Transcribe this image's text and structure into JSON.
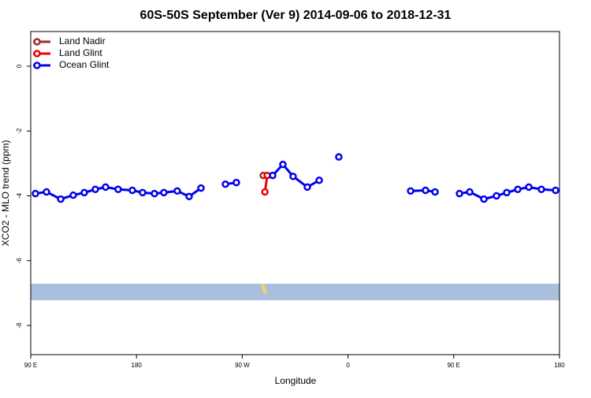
{
  "chart_data": {
    "type": "line",
    "title": "60S-50S September (Ver 9)   2014-09-06 to 2018-12-31",
    "x_label": "Longitude",
    "y_label": "XCO2 - MLO trend (ppm)",
    "xlim": [
      90,
      540
    ],
    "ylim": [
      -8.9,
      1.07
    ],
    "xticks": [
      {
        "value": 90,
        "label": "90 E"
      },
      {
        "value": 180,
        "label": "180"
      },
      {
        "value": 270,
        "label": "90 W"
      },
      {
        "value": 360,
        "label": "0"
      },
      {
        "value": 450,
        "label": "90 E"
      },
      {
        "value": 540,
        "label": "180"
      }
    ],
    "yticks": [
      0,
      -2,
      -4,
      -6,
      -8
    ],
    "legend": "top-left",
    "series": [
      {
        "name": "Land Nadir",
        "color": "#a52a2a",
        "x": [
          287.9
        ],
        "values": [
          -3.37
        ]
      },
      {
        "name": "Land Glint",
        "color": "#ee0000",
        "x": [
          291.3,
          289.3
        ],
        "values": [
          -3.37,
          -3.88
        ]
      },
      {
        "name": "Ocean Glint",
        "color": "#0000ee",
        "x": [
          94,
          103.4,
          115.5,
          126.2,
          135.6,
          145,
          153.7,
          164.4,
          176.5,
          185.2,
          195.3,
          203.3,
          214.7,
          224.8,
          234.9,
          245,
          255.7,
          265,
          280,
          295.9,
          304.6,
          313.3,
          325.4,
          335.5,
          345,
          352.2,
          380,
          413.3,
          426,
          434.1,
          445,
          454.9,
          463.6,
          475.7,
          486.4,
          495.1,
          504.5,
          513.9,
          524.6,
          536.7
        ],
        "values": [
          -3.93,
          -3.88,
          -4.1,
          -3.98,
          -3.9,
          -3.8,
          -3.73,
          -3.8,
          -3.83,
          -3.9,
          -3.93,
          -3.9,
          -3.85,
          -4.02,
          -3.76,
          null,
          -3.64,
          -3.59,
          null,
          -3.37,
          -3.03,
          -3.4,
          -3.73,
          -3.52,
          null,
          -2.8,
          null,
          -3.85,
          -3.83,
          -3.88,
          null,
          -3.93,
          -3.88,
          -4.1,
          -4.0,
          -3.9,
          -3.8,
          -3.73,
          -3.8,
          -3.83
        ]
      }
    ]
  }
}
